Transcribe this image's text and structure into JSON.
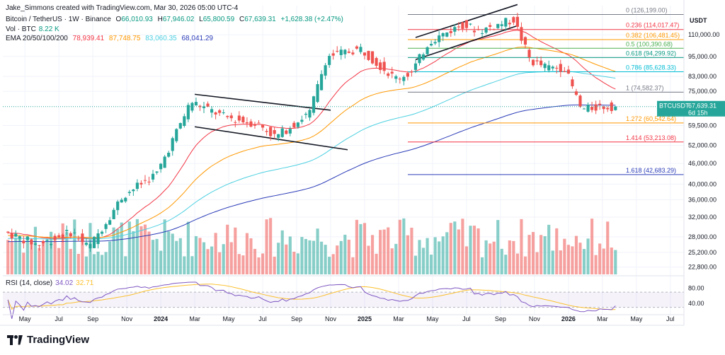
{
  "header": {
    "credit": "Jake_Simmons created with TradingView.com, Mar 30, 2026 05:00 UTC-4",
    "symbol": "Bitcoin / TetherUS · 1W · Binance",
    "ohlc": {
      "o_label": "O",
      "o": "66,010.93",
      "h_label": "H",
      "h": "67,946.02",
      "l_label": "L",
      "l": "65,800.59",
      "c_label": "C",
      "c": "67,639.31",
      "chg": "+1,628.38 (+2.47%)"
    },
    "vol_label": "Vol · BTC",
    "vol_value": "8.22 K",
    "ema_label": "EMA 20/50/100/200",
    "ema_values": [
      "78,939.41",
      "87,748.75",
      "83,060.35",
      "68,041.29"
    ]
  },
  "colors": {
    "up": "#26a69a",
    "down": "#ef5350",
    "ema20": "#f23645",
    "ema50": "#ff9800",
    "ema100": "#4dd0e1",
    "ema200": "#2a3bb7",
    "rsi": "#7e57c2",
    "rsi_ma": "#fbc02d"
  },
  "price_axis": {
    "currency": "USDT",
    "ticks": [
      "110,000.00",
      "95,000.00",
      "83,000.00",
      "75,000.00",
      "59,500.00",
      "52,000.00",
      "46,000.00",
      "40,000.00",
      "36,000.00",
      "32,000.00",
      "28,000.00",
      "25,200.00",
      "22,800.00"
    ]
  },
  "current_price": {
    "symbol": "BTCUSDT",
    "price": "67,639.31",
    "countdown": "6d 15h"
  },
  "fib_levels": [
    {
      "ratio": "0",
      "price": "126,199.00",
      "color": "#787b86"
    },
    {
      "ratio": "0.236",
      "price": "114,017.47",
      "color": "#f23645"
    },
    {
      "ratio": "0.382",
      "price": "106,481.45",
      "color": "#ff9800"
    },
    {
      "ratio": "0.5",
      "price": "100,390.68",
      "color": "#4caf50"
    },
    {
      "ratio": "0.618",
      "price": "94,299.92",
      "color": "#089981"
    },
    {
      "ratio": "0.786",
      "price": "85,628.33",
      "color": "#00bcd4"
    },
    {
      "ratio": "1",
      "price": "74,582.37",
      "color": "#787b86"
    },
    {
      "ratio": "1.272",
      "price": "60,542.64",
      "color": "#ff9800"
    },
    {
      "ratio": "1.414",
      "price": "53,213.08",
      "color": "#f23645"
    },
    {
      "ratio": "1.618",
      "price": "42,683.29",
      "color": "#2a3bb7"
    }
  ],
  "rsi": {
    "label": "RSI (14, close)",
    "value": "34.02",
    "ma": "32.71",
    "ticks": [
      "80.00",
      "40.00"
    ]
  },
  "time_axis": [
    "May",
    "Jul",
    "Sep",
    "Nov",
    "2024",
    "Mar",
    "May",
    "Jul",
    "Sep",
    "Nov",
    "2025",
    "Mar",
    "May",
    "Jul",
    "Sep",
    "Nov",
    "2026",
    "Mar",
    "May",
    "Jul"
  ],
  "logo_text": "TradingView",
  "chart_data": {
    "type": "candlestick",
    "title": "Bitcoin / TetherUS · 1W · Binance",
    "x_range": [
      "2023-04",
      "2026-07"
    ],
    "y_scale": "log",
    "y_range_usdt": [
      21500,
      134000
    ],
    "series": [
      {
        "name": "EMA 20",
        "last": 78939.41
      },
      {
        "name": "EMA 50",
        "last": 87748.75
      },
      {
        "name": "EMA 100",
        "last": 83060.35
      },
      {
        "name": "EMA 200",
        "last": 68041.29
      }
    ],
    "last_candle": {
      "open": 66010.93,
      "high": 67946.02,
      "low": 65800.59,
      "close": 67639.31
    },
    "price_path_approx": [
      [
        "2023-04",
        29000
      ],
      [
        "2023-06",
        26500
      ],
      [
        "2023-08",
        29000
      ],
      [
        "2023-09",
        26000
      ],
      [
        "2023-11",
        37000
      ],
      [
        "2024-01",
        43000
      ],
      [
        "2024-03",
        70000
      ],
      [
        "2024-05",
        63000
      ],
      [
        "2024-07",
        60000
      ],
      [
        "2024-08",
        55000
      ],
      [
        "2024-10",
        65000
      ],
      [
        "2024-11",
        95000
      ],
      [
        "2025-01",
        100000
      ],
      [
        "2025-03",
        82000
      ],
      [
        "2025-04",
        85000
      ],
      [
        "2025-05",
        105000
      ],
      [
        "2025-07",
        118000
      ],
      [
        "2025-08",
        113000
      ],
      [
        "2025-10",
        122000
      ],
      [
        "2025-11",
        92000
      ],
      [
        "2025-12",
        88000
      ],
      [
        "2026-01",
        88000
      ],
      [
        "2026-02",
        66000
      ],
      [
        "2026-03",
        67639.31
      ]
    ]
  }
}
